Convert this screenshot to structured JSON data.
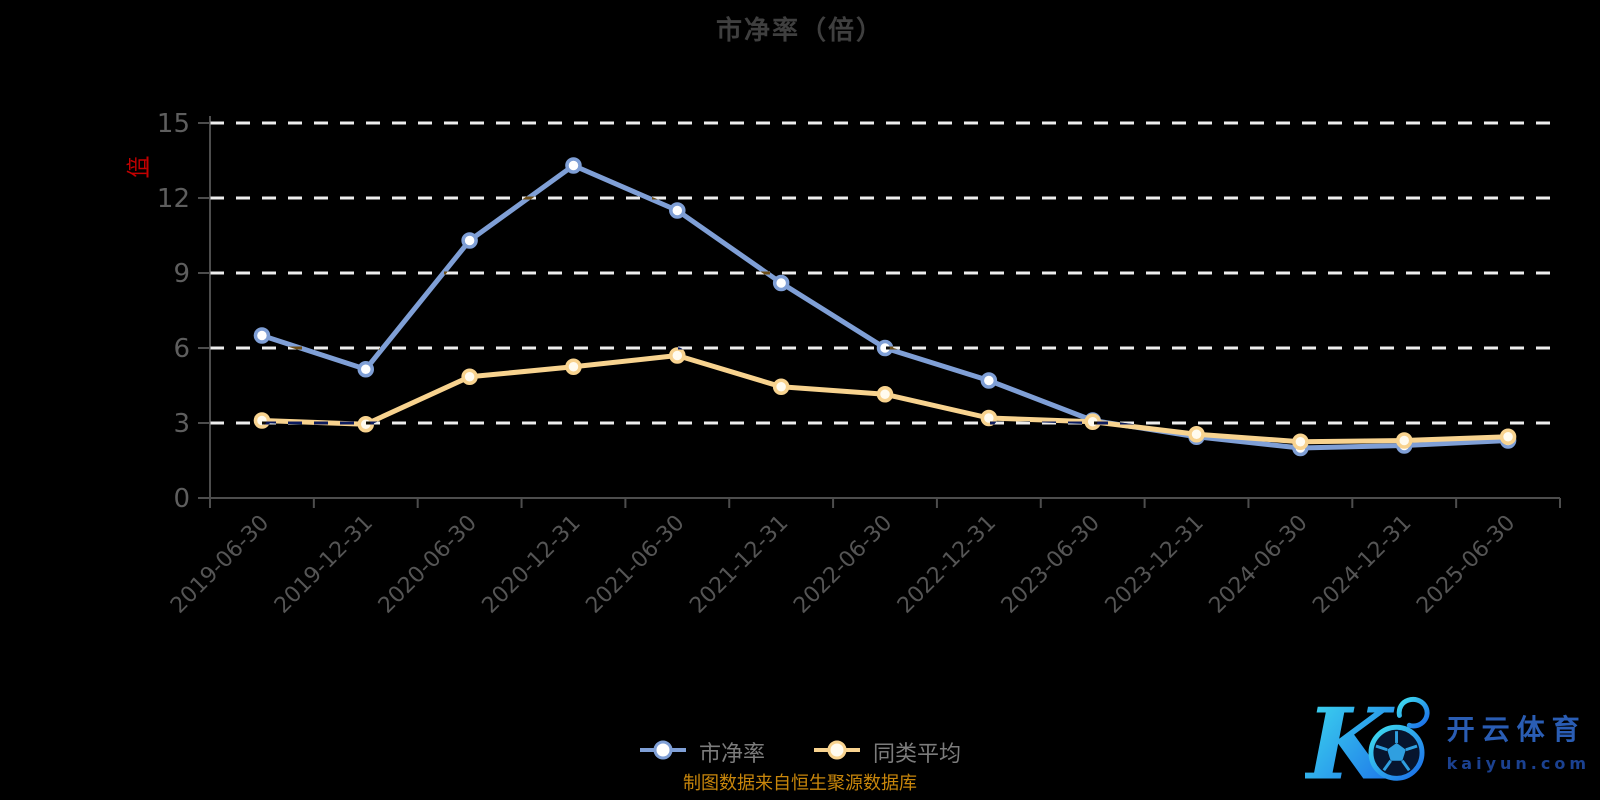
{
  "title": "市净率（倍）",
  "y_axis_name": "倍",
  "source_note": "制图数据来自恒生聚源数据库",
  "watermark": {
    "brand": "开云体育",
    "domain": "kaiyun.com",
    "letter": "K"
  },
  "colors": {
    "background": "#000000",
    "grid": "#ededed",
    "axis": "#4d4d4d",
    "y_tick_label": "#5e5e5e",
    "x_tick_label": "#555555",
    "title": "#3f3f3f",
    "legend_text": "#7c7c7c",
    "source_text": "#c8860b",
    "y_axis_name": "#c40000",
    "brand_blue": "#2a5db4",
    "domain_blue": "#1b4190",
    "logo_gradient_start": "#40e0ef",
    "logo_gradient_end": "#1a6ae8"
  },
  "chart_data": {
    "type": "line",
    "title": "市净率（倍）",
    "categories": [
      "2019-06-30",
      "2019-12-31",
      "2020-06-30",
      "2020-12-31",
      "2021-06-30",
      "2021-12-31",
      "2022-06-30",
      "2022-12-31",
      "2023-06-30",
      "2023-12-31",
      "2024-06-30",
      "2024-12-31",
      "2025-06-30"
    ],
    "series": [
      {
        "name": "市净率",
        "color": "#7f9fd6",
        "marker_fill": "#ffffff",
        "values": [
          6.5,
          5.15,
          10.3,
          13.3,
          11.5,
          8.6,
          6.0,
          4.7,
          3.1,
          2.45,
          2.0,
          2.1,
          2.3
        ]
      },
      {
        "name": "同类平均",
        "color": "#f8d38f",
        "marker_fill": "#fffbef",
        "values": [
          3.1,
          2.95,
          4.85,
          5.25,
          5.7,
          4.45,
          4.15,
          3.2,
          3.05,
          2.55,
          2.25,
          2.3,
          2.45
        ]
      }
    ],
    "xlabel": "",
    "ylabel": "倍",
    "ylim": [
      0,
      15
    ],
    "yticks": [
      0,
      3,
      6,
      9,
      12,
      15
    ],
    "grid": "horizontal dashed",
    "x_label_rotation": 45,
    "legend_position": "bottom-center"
  }
}
